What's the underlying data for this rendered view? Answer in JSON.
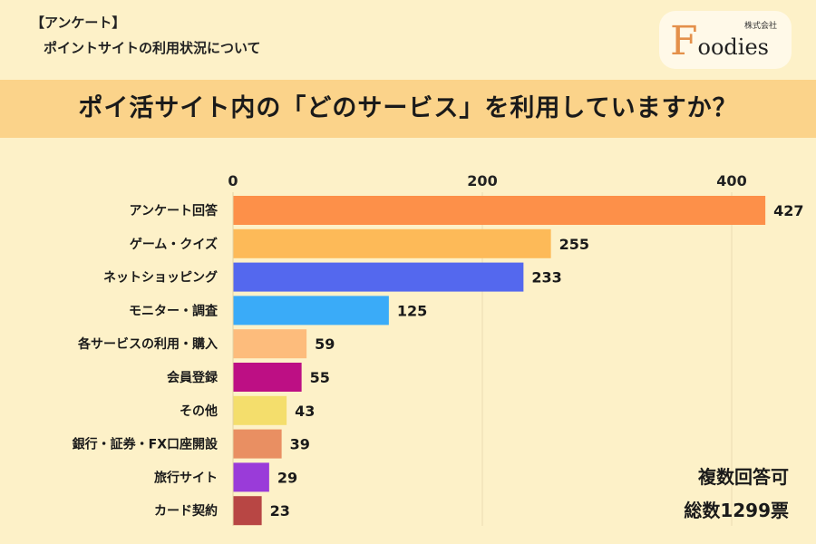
{
  "header": {
    "tag": "【アンケート】",
    "subtitle": "ポイントサイトの利用状況について"
  },
  "logo": {
    "company": "株式会社",
    "initial": "F",
    "rest": "oodies"
  },
  "banner": {
    "question": "ポイ活サイト内の「どのサービス」を利用していますか？"
  },
  "notes": {
    "multiple": "複数回答可",
    "total": "総数1299票"
  },
  "chart_data": {
    "type": "bar",
    "orientation": "horizontal",
    "categories": [
      "アンケート回答",
      "ゲーム・クイズ",
      "ネットショッピング",
      "モニター・調査",
      "各サービスの利用・購入",
      "会員登録",
      "その他",
      "銀行・証券・FX口座開設",
      "旅行サイト",
      "カード契約"
    ],
    "values": [
      427,
      255,
      233,
      125,
      59,
      55,
      43,
      39,
      29,
      23
    ],
    "colors": [
      "#fd9049",
      "#fdba58",
      "#5468ee",
      "#3aabf8",
      "#fdbc7c",
      "#bd0f84",
      "#f4de6c",
      "#e98f62",
      "#9a3bd9",
      "#b84644"
    ],
    "xticks": [
      0,
      200,
      400
    ],
    "xlim": [
      0,
      430
    ],
    "grid": true,
    "gridline_color": "#ecdcb2"
  }
}
